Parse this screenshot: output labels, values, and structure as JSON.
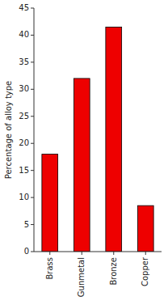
{
  "chart_data": {
    "type": "bar",
    "categories": [
      "Brass",
      "Gunmetal",
      "Bronze",
      "Copper"
    ],
    "values": [
      18,
      32,
      41.5,
      8.5
    ],
    "color": "#ee0000",
    "ylabel": "Percentage of alloy type",
    "ylim": [
      0,
      45
    ],
    "yticks": [
      0,
      5,
      10,
      15,
      20,
      25,
      30,
      35,
      40,
      45
    ],
    "grid": false
  }
}
